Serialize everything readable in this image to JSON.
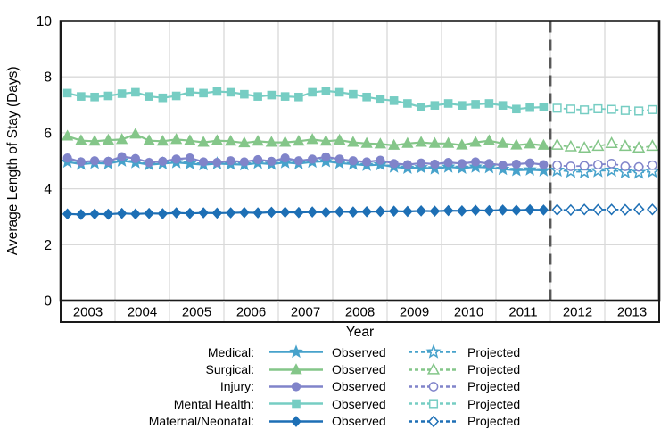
{
  "chart_data": {
    "type": "line",
    "title": "",
    "xlabel": "Year",
    "ylabel": "Average Length of Stay (Days)",
    "ylim": [
      0,
      10
    ],
    "yticks": [
      0,
      2,
      4,
      6,
      8,
      10
    ],
    "year_labels": [
      "2003",
      "2004",
      "2005",
      "2006",
      "2007",
      "2008",
      "2009",
      "2010",
      "2011",
      "2012",
      "2013"
    ],
    "x_start": 2003.125,
    "x_step": 0.25,
    "divider_year": 2012,
    "grid": true,
    "legend_position": "bottom",
    "observed_label": "Observed",
    "projected_label": "Projected",
    "colors": {
      "grid": "#d9d9d9",
      "frame": "#1a1a1a",
      "divider": "#595959",
      "background": "#ffffff"
    },
    "series": [
      {
        "name": "Medical",
        "legend_label": "Medical:",
        "marker": "star",
        "color": "#47a2cb",
        "observed": [
          4.96,
          4.88,
          4.92,
          4.9,
          5.0,
          4.94,
          4.86,
          4.9,
          4.94,
          4.9,
          4.86,
          4.9,
          4.88,
          4.86,
          4.92,
          4.88,
          4.94,
          4.9,
          4.96,
          4.98,
          4.92,
          4.88,
          4.84,
          4.86,
          4.78,
          4.74,
          4.76,
          4.72,
          4.78,
          4.74,
          4.78,
          4.76,
          4.7,
          4.66,
          4.68,
          4.65
        ],
        "projected": [
          4.66,
          4.62,
          4.6,
          4.64,
          4.66,
          4.6,
          4.58,
          4.62
        ]
      },
      {
        "name": "Surgical",
        "legend_label": "Surgical:",
        "marker": "triangle",
        "color": "#84c689",
        "observed": [
          5.88,
          5.72,
          5.7,
          5.74,
          5.76,
          5.95,
          5.72,
          5.7,
          5.76,
          5.72,
          5.66,
          5.72,
          5.7,
          5.64,
          5.7,
          5.66,
          5.66,
          5.7,
          5.76,
          5.7,
          5.74,
          5.66,
          5.62,
          5.6,
          5.55,
          5.62,
          5.66,
          5.62,
          5.62,
          5.56,
          5.66,
          5.72,
          5.62,
          5.56,
          5.6,
          5.55
        ],
        "projected": [
          5.56,
          5.5,
          5.46,
          5.52,
          5.62,
          5.52,
          5.46,
          5.52
        ]
      },
      {
        "name": "Injury",
        "legend_label": "Injury:",
        "marker": "circle",
        "color": "#8084ca",
        "observed": [
          5.1,
          4.96,
          5.0,
          4.98,
          5.15,
          5.08,
          4.94,
          4.98,
          5.06,
          5.1,
          4.96,
          4.94,
          5.0,
          4.96,
          5.04,
          4.98,
          5.1,
          5.0,
          5.06,
          5.14,
          5.06,
          5.0,
          4.96,
          5.02,
          4.9,
          4.86,
          4.92,
          4.88,
          4.94,
          4.9,
          4.96,
          4.9,
          4.84,
          4.88,
          4.92,
          4.86
        ],
        "projected": [
          4.84,
          4.8,
          4.82,
          4.86,
          4.9,
          4.8,
          4.78,
          4.84
        ]
      },
      {
        "name": "Mental Health",
        "legend_label": "Mental Health:",
        "marker": "square",
        "color": "#76cdc3",
        "observed": [
          7.42,
          7.3,
          7.28,
          7.32,
          7.4,
          7.45,
          7.3,
          7.25,
          7.32,
          7.45,
          7.42,
          7.48,
          7.45,
          7.38,
          7.3,
          7.35,
          7.3,
          7.28,
          7.45,
          7.5,
          7.45,
          7.38,
          7.28,
          7.2,
          7.15,
          7.05,
          6.92,
          6.98,
          7.05,
          6.98,
          7.02,
          7.05,
          6.98,
          6.85,
          6.9,
          6.92
        ],
        "projected": [
          6.88,
          6.85,
          6.82,
          6.86,
          6.84,
          6.8,
          6.78,
          6.83
        ]
      },
      {
        "name": "Maternal/Neonatal",
        "legend_label": "Maternal/Neonatal:",
        "marker": "diamond",
        "color": "#1d6fb5",
        "observed": [
          3.1,
          3.08,
          3.1,
          3.09,
          3.12,
          3.1,
          3.12,
          3.11,
          3.14,
          3.12,
          3.14,
          3.13,
          3.14,
          3.15,
          3.14,
          3.16,
          3.16,
          3.15,
          3.17,
          3.16,
          3.18,
          3.17,
          3.18,
          3.19,
          3.2,
          3.19,
          3.21,
          3.2,
          3.22,
          3.21,
          3.23,
          3.22,
          3.24,
          3.23,
          3.25,
          3.24
        ],
        "projected": [
          3.25,
          3.24,
          3.26,
          3.25,
          3.26,
          3.25,
          3.27,
          3.26
        ]
      }
    ]
  }
}
